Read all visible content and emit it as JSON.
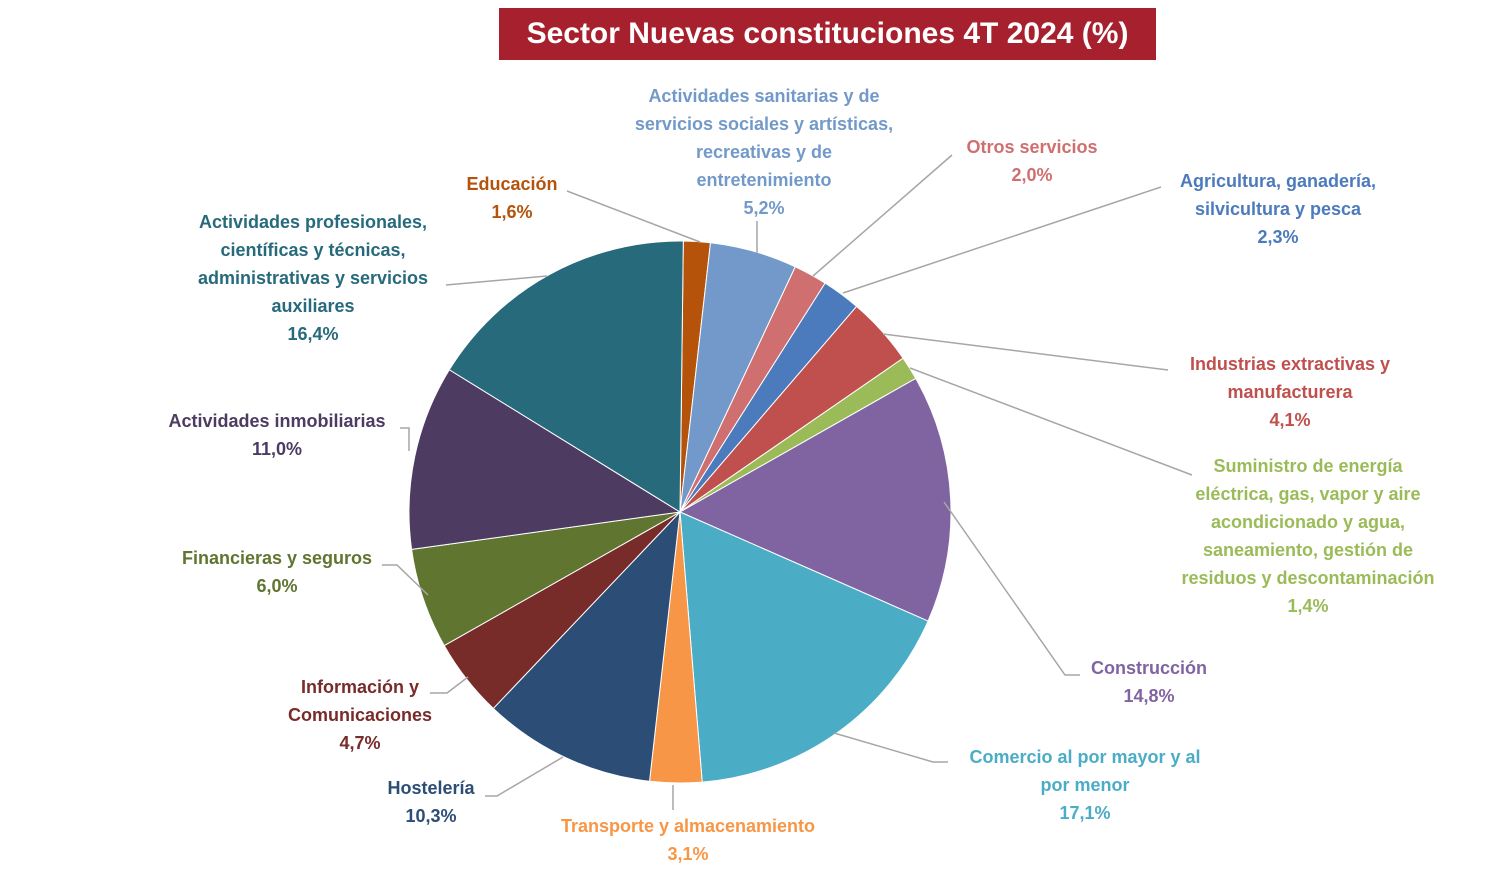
{
  "chart_data": {
    "type": "pie",
    "title": "Sector Nuevas constituciones 4T 2024 (%)",
    "title_background": "#a7202e",
    "slices": [
      {
        "name": "Educación",
        "label_lines": [
          "Educación"
        ],
        "value": 1.6,
        "value_label": "1,6%",
        "color": "#b5530b",
        "label_color": "#b5530b"
      },
      {
        "name": "Actividades sanitarias y de servicios sociales y artísticas, recreativas y de entretenimiento",
        "label_lines": [
          "Actividades sanitarias y de",
          "servicios sociales y artísticas,",
          "recreativas y de",
          "entretenimiento"
        ],
        "value": 5.2,
        "value_label": "5,2%",
        "color": "#7399ca",
        "label_color": "#7399ca"
      },
      {
        "name": "Otros servicios",
        "label_lines": [
          "Otros servicios"
        ],
        "value": 2.0,
        "value_label": "2,0%",
        "color": "#d06f6f",
        "label_color": "#d06f6f"
      },
      {
        "name": "Agricultura, ganadería, silvicultura y pesca",
        "label_lines": [
          "Agricultura, ganadería,",
          "silvicultura y pesca"
        ],
        "value": 2.3,
        "value_label": "2,3%",
        "color": "#4c7bbd",
        "label_color": "#4c7bbd"
      },
      {
        "name": "Industrias extractivas y manufacturera",
        "label_lines": [
          "Industrias extractivas y",
          "manufacturera"
        ],
        "value": 4.1,
        "value_label": "4,1%",
        "color": "#c0504d",
        "label_color": "#c0504d"
      },
      {
        "name": "Suministro de energía eléctrica, gas, vapor y aire acondicionado y agua, saneamiento, gestión de residuos y descontaminación",
        "label_lines": [
          "Suministro de energía",
          "eléctrica, gas, vapor y aire",
          "acondicionado y agua,",
          "saneamiento, gestión de",
          "residuos y descontaminación"
        ],
        "value": 1.4,
        "value_label": "1,4%",
        "color": "#9bbb59",
        "label_color": "#9bbb59"
      },
      {
        "name": "Construcción",
        "label_lines": [
          "Construcción"
        ],
        "value": 14.8,
        "value_label": "14,8%",
        "color": "#8064a2",
        "label_color": "#8064a2"
      },
      {
        "name": "Comercio al por mayor y al por menor",
        "label_lines": [
          "Comercio al por mayor y al",
          "por menor"
        ],
        "value": 17.1,
        "value_label": "17,1%",
        "color": "#4bacc6",
        "label_color": "#4bacc6"
      },
      {
        "name": "Transporte y almacenamiento",
        "label_lines": [
          "Transporte y almacenamiento"
        ],
        "value": 3.1,
        "value_label": "3,1%",
        "color": "#f79646",
        "label_color": "#f79646"
      },
      {
        "name": "Hostelería",
        "label_lines": [
          "Hostelería"
        ],
        "value": 10.3,
        "value_label": "10,3%",
        "color": "#2c4d75",
        "label_color": "#2c4d75"
      },
      {
        "name": "Información y Comunicaciones",
        "label_lines": [
          "Información y",
          "Comunicaciones"
        ],
        "value": 4.7,
        "value_label": "4,7%",
        "color": "#772c2a",
        "label_color": "#772c2a"
      },
      {
        "name": "Financieras y seguros",
        "label_lines": [
          "Financieras y seguros"
        ],
        "value": 6.0,
        "value_label": "6,0%",
        "color": "#5f7530",
        "label_color": "#5f7530"
      },
      {
        "name": "Actividades inmobiliarias",
        "label_lines": [
          "Actividades inmobiliarias"
        ],
        "value": 11.0,
        "value_label": "11,0%",
        "color": "#4d3b62",
        "label_color": "#4d3b62"
      },
      {
        "name": "Actividades profesionales, científicas y técnicas, administrativas y servicios auxiliares",
        "label_lines": [
          "Actividades profesionales,",
          "científicas y técnicas,",
          "administrativas y servicios",
          "auxiliares"
        ],
        "value": 16.4,
        "value_label": "16,4%",
        "color": "#276a7c",
        "label_color": "#276a7c"
      }
    ],
    "legend": "none",
    "leader_line_color": "#a6a6a6"
  }
}
